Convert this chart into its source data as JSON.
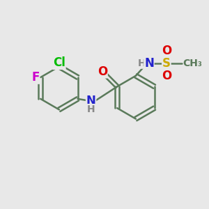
{
  "bg_color": "#e8e8e8",
  "bond_color": "#5a7a5a",
  "bond_width": 1.8,
  "atom_colors": {
    "F": "#cc00cc",
    "Cl": "#00bb00",
    "N": "#2222cc",
    "O": "#dd0000",
    "S": "#ccaa00",
    "H": "#888888",
    "C": "#5a7a5a"
  },
  "font_size_atom": 12,
  "font_size_small": 10,
  "xlim": [
    0,
    10
  ],
  "ylim": [
    0,
    10
  ]
}
